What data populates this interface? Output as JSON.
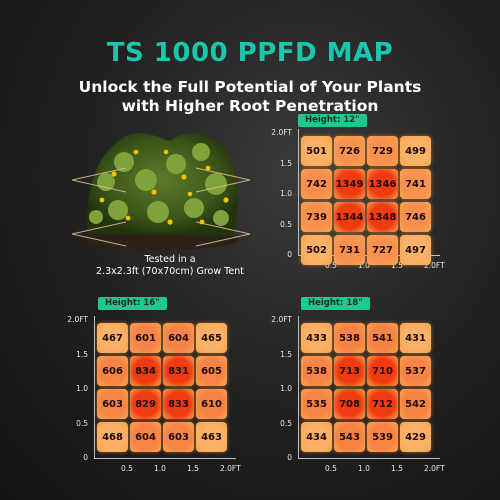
{
  "header": {
    "title": "TS 1000 PPFD MAP",
    "subtitle_line1": "Unlock the Full Potential of Your Plants",
    "subtitle_line2": "with Higher Root Penetration"
  },
  "tent_note": {
    "line1": "Tested in a",
    "line2": "2.3x2.3ft (70x70cm) Grow Tent"
  },
  "colors": {
    "accent": "#19c7ad",
    "badge": "#1ec98d",
    "cell_high": "#f03a10",
    "cell_low": "#fbb267"
  },
  "chart_data": [
    {
      "type": "heatmap",
      "label": "Height: 12\"",
      "x_ticks": [
        "0.5",
        "1.0",
        "1.5",
        "2.0FT"
      ],
      "y_ticks": [
        "2.0FT",
        "1.5",
        "1.0",
        "0.5",
        "0"
      ],
      "xlim": [
        0,
        2.0
      ],
      "ylim": [
        0,
        2.0
      ],
      "unit": "FT",
      "values": [
        [
          501,
          726,
          729,
          499
        ],
        [
          742,
          1349,
          1346,
          741
        ],
        [
          739,
          1344,
          1348,
          746
        ],
        [
          502,
          731,
          727,
          497
        ]
      ]
    },
    {
      "type": "heatmap",
      "label": "Height: 16\"",
      "x_ticks": [
        "0.5",
        "1.0",
        "1.5",
        "2.0FT"
      ],
      "y_ticks": [
        "2.0FT",
        "1.5",
        "1.0",
        "0.5",
        "0"
      ],
      "xlim": [
        0,
        2.0
      ],
      "ylim": [
        0,
        2.0
      ],
      "unit": "FT",
      "values": [
        [
          467,
          601,
          604,
          465
        ],
        [
          606,
          834,
          831,
          605
        ],
        [
          603,
          829,
          833,
          610
        ],
        [
          468,
          604,
          603,
          463
        ]
      ]
    },
    {
      "type": "heatmap",
      "label": "Height: 18\"",
      "x_ticks": [
        "0.5",
        "1.0",
        "1.5",
        "2.0FT"
      ],
      "y_ticks": [
        "2.0FT",
        "1.5",
        "1.0",
        "0.5",
        "0"
      ],
      "xlim": [
        0,
        2.0
      ],
      "ylim": [
        0,
        2.0
      ],
      "unit": "FT",
      "values": [
        [
          433,
          538,
          541,
          431
        ],
        [
          538,
          713,
          710,
          537
        ],
        [
          535,
          708,
          712,
          542
        ],
        [
          434,
          543,
          539,
          429
        ]
      ]
    }
  ]
}
